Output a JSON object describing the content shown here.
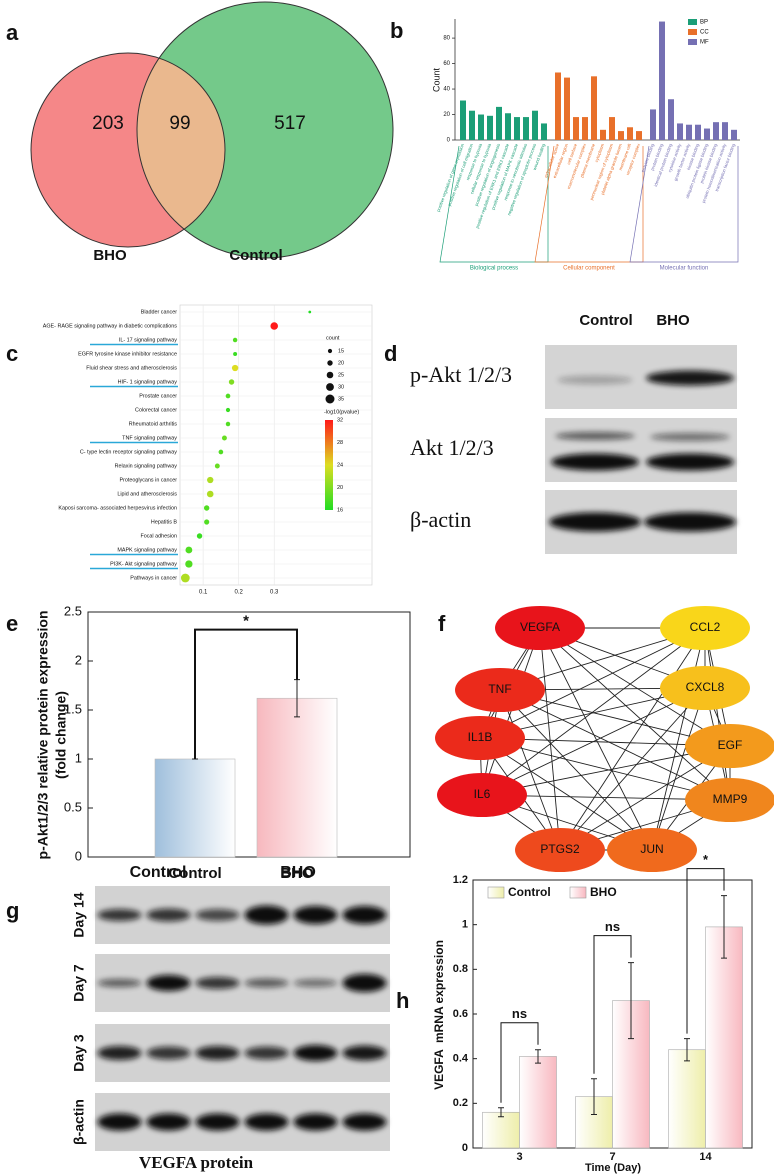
{
  "chart_data": [
    {
      "type": "venn",
      "panel": "a",
      "sets": [
        {
          "name": "BHO",
          "color": "#f58788"
        },
        {
          "name": "Control",
          "color": "#74c98a"
        }
      ],
      "overlap_color": "#eab88e",
      "values": [
        203,
        99,
        517
      ]
    },
    {
      "type": "bar",
      "panel": "b",
      "ylabel": "Count",
      "ylim": [
        0,
        95
      ],
      "yticks": [
        0,
        20,
        40,
        60,
        80
      ],
      "legend": "top-right",
      "groups": [
        {
          "name": "Biological process",
          "short": "BP",
          "color": "#1b9e77",
          "categories": [
            "positive regulation of gene expression",
            "positive regulation of cell migration",
            "response to hypoxia",
            "cellular response to hypoxia",
            "positive regulation of angiogenesis",
            "positive regulation of ERK1 and ERK2 cascade",
            "positive regulation of MAPK cascade",
            "response to xenobiotic stimulus",
            "negative regulation of apoptotic process",
            "wound healing"
          ],
          "values": [
            31,
            23,
            20,
            19,
            26,
            21,
            18,
            18,
            23,
            13
          ]
        },
        {
          "name": "Cellular component",
          "short": "CC",
          "color": "#e8702a",
          "categories": [
            "extracellular space",
            "extracellular region",
            "cell surface",
            "macromolecular complex",
            "plasma membrane",
            "cytoplasm",
            "perinuclear region of cytoplasm",
            "platelet alpha granule lumen",
            "membrane raft",
            "receptor complex"
          ],
          "values": [
            53,
            49,
            18,
            18,
            50,
            8,
            18,
            7,
            10,
            7
          ]
        },
        {
          "name": "Molecular function",
          "short": "MF",
          "color": "#7570b3",
          "categories": [
            "enzyme binding",
            "protein binding",
            "identical protein binding",
            "cytokine activity",
            "growth factor activity",
            "kinase binding",
            "ubiquitin protein ligase binding",
            "protein kinase binding",
            "protein homodimerization activity",
            "transcription factor binding"
          ],
          "values": [
            24,
            93,
            32,
            13,
            12,
            12,
            9,
            14,
            14,
            8
          ]
        }
      ]
    },
    {
      "type": "scatter",
      "panel": "c",
      "categories": [
        "Bladder cancer",
        "AGE- RAGE signaling pathway in diabetic complications",
        "IL- 17 signaling pathway",
        "EGFR tyrosine kinase inhibitor resistance",
        "Fluid shear stress and atherosclerosis",
        "HIF- 1 signaling pathway",
        "Prostate cancer",
        "Colorectal cancer",
        "Rheumatoid arthritis",
        "TNF signaling pathway",
        "C- type lectin receptor signaling pathway",
        "Relaxin signaling pathway",
        "Proteoglycans in cancer",
        "Lipid and atherosclerosis",
        "Kaposi sarcoma- associated herpesvirus infection",
        "Hepatitis B",
        "Focal adhesion",
        "MAPK signaling pathway",
        "PI3K- Akt signaling pathway",
        "Pathways in cancer"
      ],
      "x": [
        0.4,
        0.3,
        0.19,
        0.19,
        0.19,
        0.18,
        0.17,
        0.17,
        0.17,
        0.16,
        0.15,
        0.14,
        0.12,
        0.12,
        0.11,
        0.11,
        0.09,
        0.06,
        0.06,
        0.05
      ],
      "count": [
        9,
        29,
        16,
        14,
        24,
        20,
        17,
        15,
        16,
        18,
        17,
        18,
        24,
        25,
        20,
        19,
        20,
        26,
        28,
        34
      ],
      "pvalue": [
        16,
        32,
        18,
        17,
        24,
        20,
        18,
        17,
        18,
        19,
        18,
        19,
        22,
        22,
        18,
        18,
        17,
        18,
        18,
        22
      ],
      "highlight": [
        false,
        false,
        true,
        false,
        false,
        true,
        false,
        false,
        false,
        true,
        false,
        false,
        false,
        false,
        false,
        false,
        false,
        true,
        true,
        false
      ],
      "xlim": [
        0.035,
        0.575
      ],
      "xticks": [
        0.1,
        0.2,
        0.3
      ],
      "grid": true,
      "size_legend": {
        "title": "count",
        "values": [
          15,
          20,
          25,
          30,
          35
        ]
      },
      "color_legend": {
        "title": "-log10(pvalue)",
        "ticks": [
          32,
          28,
          24,
          20,
          16
        ],
        "colors": [
          "#22dd22",
          "#dddd22",
          "#ff1a1a"
        ]
      }
    },
    {
      "type": "bar",
      "panel": "e",
      "ylabel": [
        "p-Akt1/2/3 relative protein expression",
        "(fold change)"
      ],
      "categories": [
        "Control",
        "BHO"
      ],
      "values": [
        1.0,
        1.62
      ],
      "errors": [
        0,
        0.19
      ],
      "colors": [
        "#9fbfdc",
        "#f7b8be"
      ],
      "annotation": "*",
      "ylim": [
        0,
        2.5
      ],
      "yticks": [
        0,
        0.5,
        1,
        1.5,
        2,
        2.5
      ]
    },
    {
      "type": "grouped_bar",
      "panel": "h",
      "xlabel": "Time (Day)",
      "ylabel": "VEGFA  mRNA expression",
      "categories": [
        "3",
        "7",
        "14"
      ],
      "series": [
        {
          "name": "Control",
          "color": "#eeeeaa",
          "values": [
            0.16,
            0.23,
            0.44
          ],
          "errors": [
            0.02,
            0.08,
            0.05
          ]
        },
        {
          "name": "BHO",
          "color": "#f8b8c0",
          "values": [
            0.41,
            0.66,
            0.99
          ],
          "errors": [
            0.03,
            0.17,
            0.14
          ]
        }
      ],
      "annotations": [
        "ns",
        "ns",
        "*"
      ],
      "ylim": [
        0,
        1.2
      ],
      "yticks": [
        0,
        0.2,
        0.4,
        0.6,
        0.8,
        1,
        1.2
      ]
    }
  ],
  "blot_d": {
    "panel": "d",
    "columns": [
      "Control",
      "BHO"
    ],
    "rows": [
      "p-Akt 1/2/3",
      "Akt 1/2/3",
      "β-actin"
    ]
  },
  "network": {
    "panel": "f",
    "nodes": [
      {
        "label": "VEGFA",
        "color": "#e8141b"
      },
      {
        "label": "CCL2",
        "color": "#f9d61a"
      },
      {
        "label": "TNF",
        "color": "#eb2a1b"
      },
      {
        "label": "CXCL8",
        "color": "#f7c01c"
      },
      {
        "label": "IL1B",
        "color": "#eb2a1b"
      },
      {
        "label": "EGF",
        "color": "#f39a1c"
      },
      {
        "label": "IL6",
        "color": "#e8141b"
      },
      {
        "label": "MMP9",
        "color": "#f0861d"
      },
      {
        "label": "PTGS2",
        "color": "#ee4a1d"
      },
      {
        "label": "JUN",
        "color": "#f06a1d"
      }
    ]
  },
  "blot_g": {
    "panel": "g",
    "columns": [
      "Control",
      "BHO"
    ],
    "rows": [
      "Day 14",
      "Day 7",
      "Day 3",
      "β-actin"
    ],
    "caption": "VEGFA protein"
  }
}
